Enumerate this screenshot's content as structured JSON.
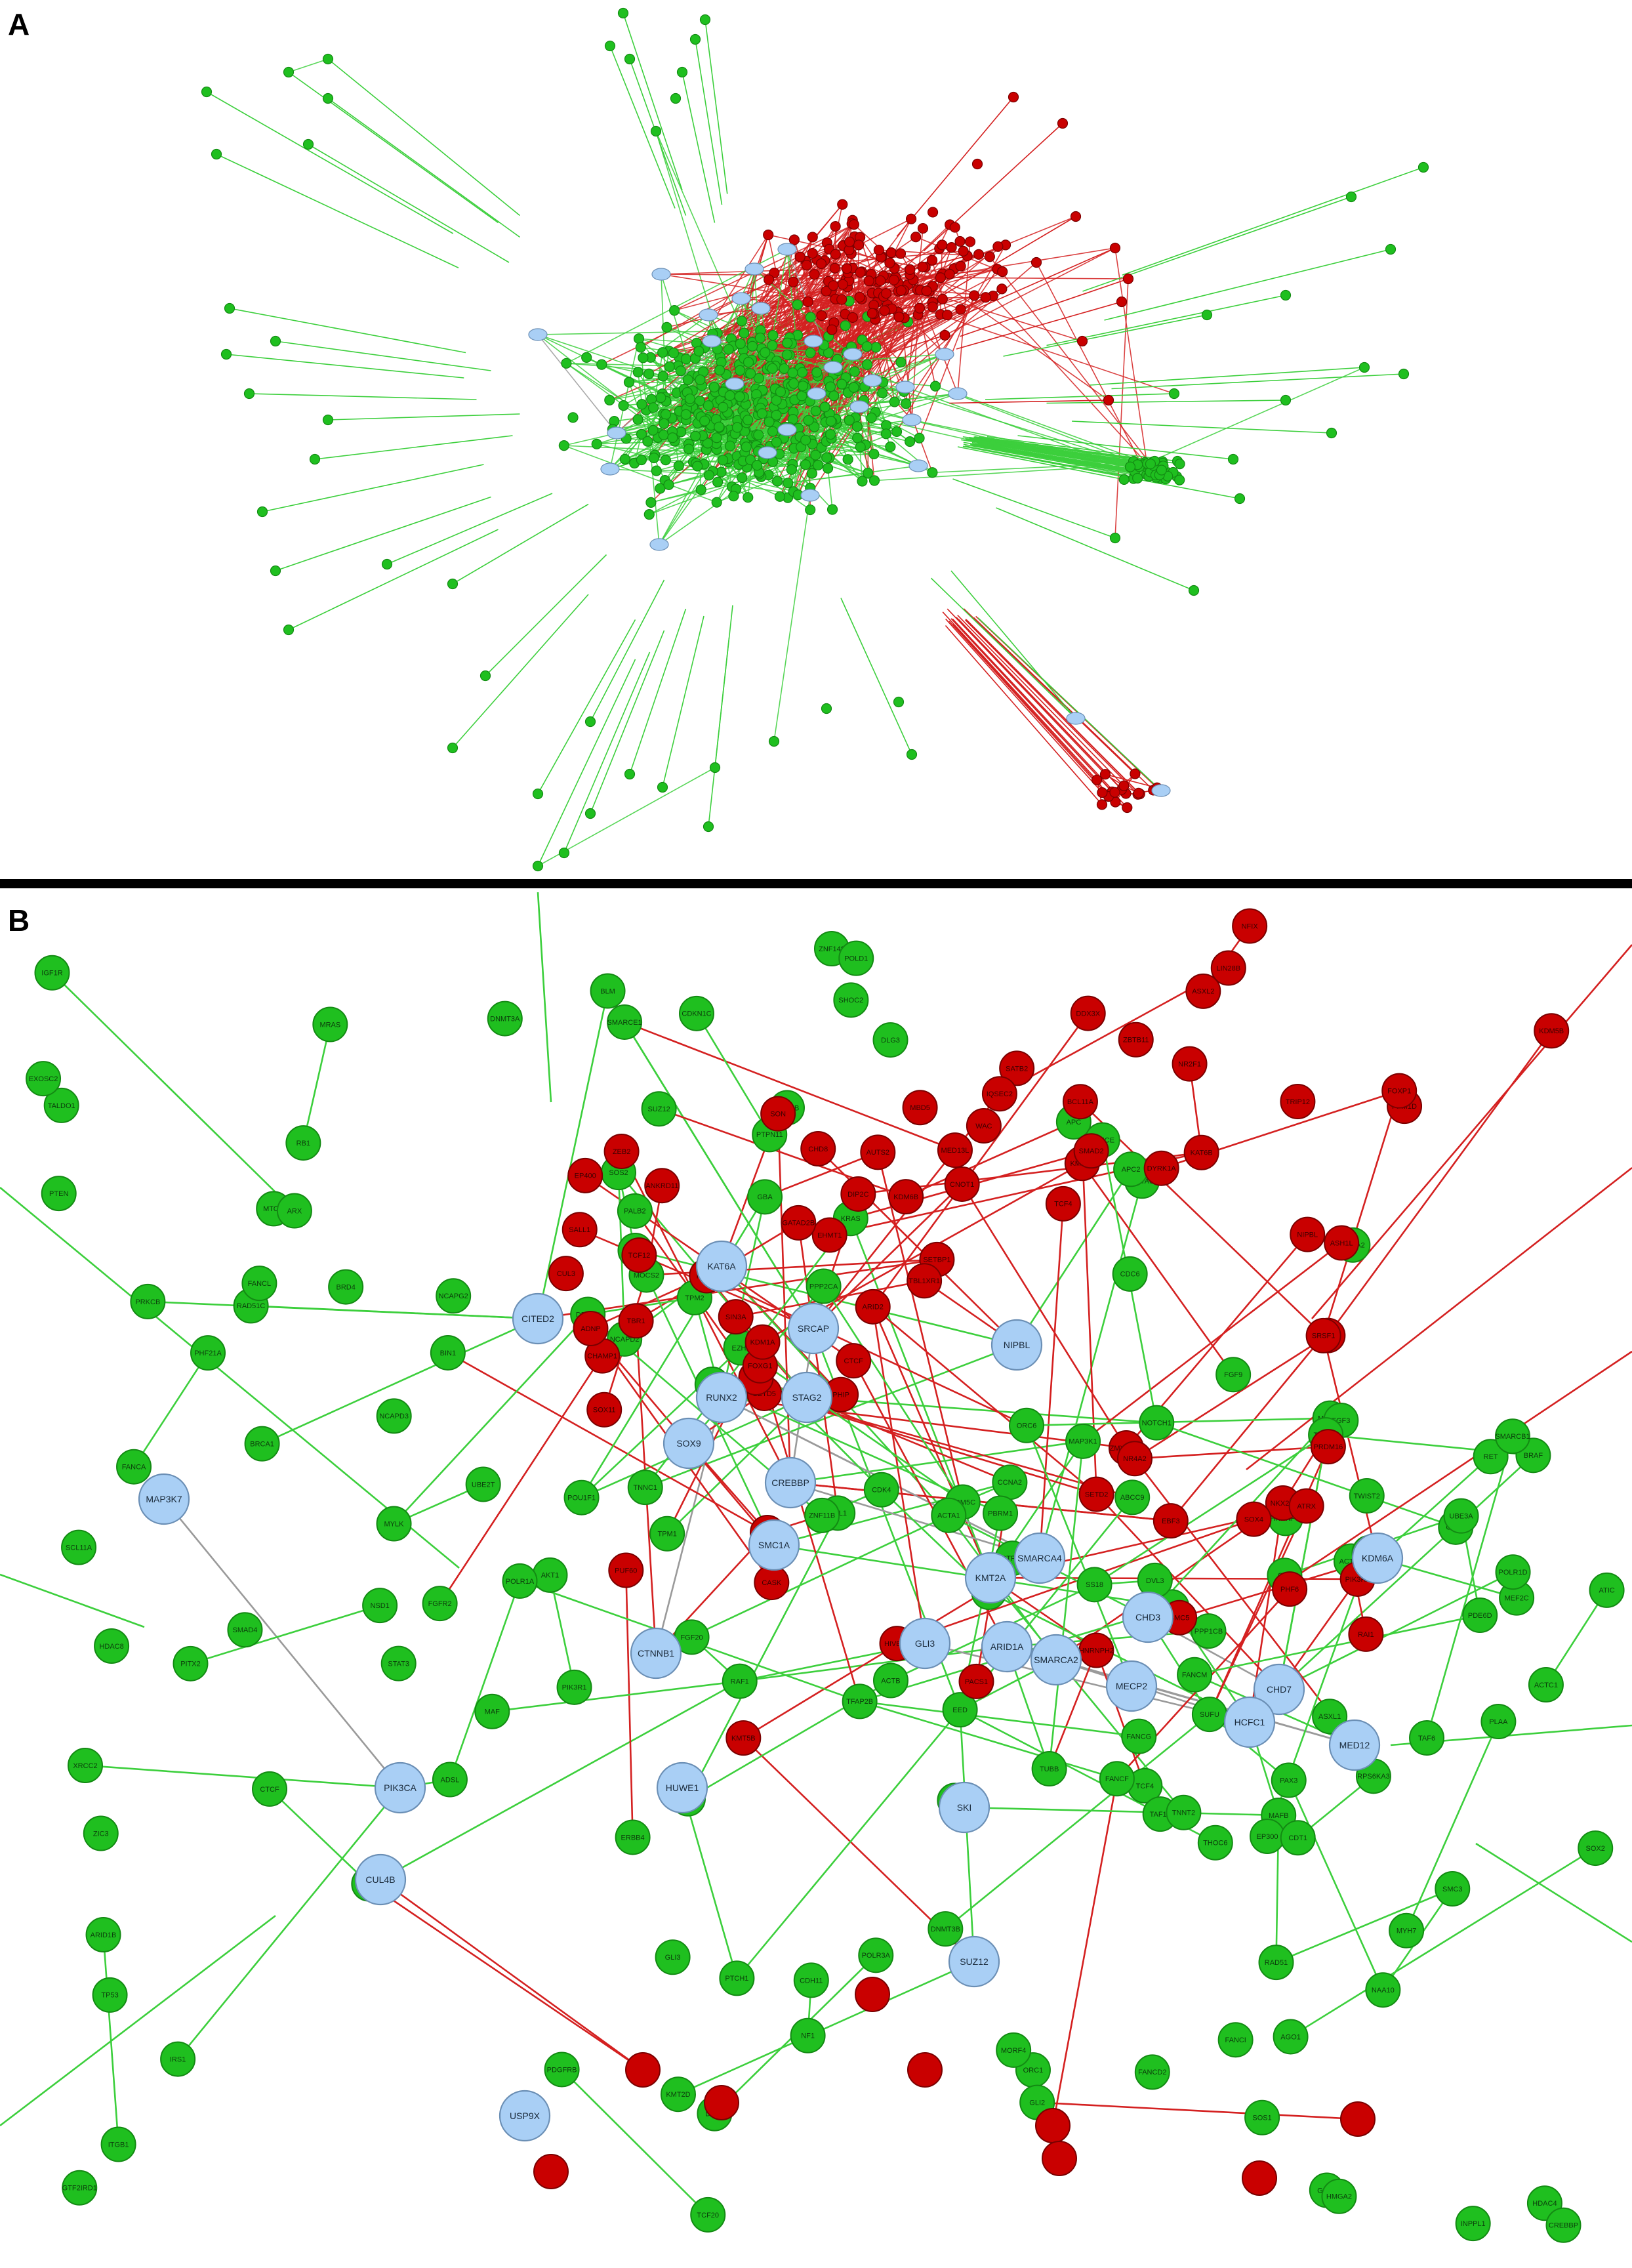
{
  "panels": {
    "a": {
      "letter": "A"
    },
    "b": {
      "letter": "B"
    }
  },
  "colors": {
    "green_node": "#1fbf1f",
    "green_stroke": "#138a13",
    "green_edge": "#3ccf3c",
    "red_node": "#c90000",
    "red_stroke": "#7a0000",
    "red_edge": "#d42020",
    "hub_node": "#a9cff5",
    "hub_stroke": "#6b8fb5",
    "hub_edge": "#9a9a9a",
    "divider": "#000000"
  },
  "panel_b_hub_labels": [
    "KAT6A",
    "CITED2",
    "SRCAP",
    "NIPBL",
    "RUNX2",
    "STAG2",
    "SOX9",
    "CREBBP",
    "MAP3K7",
    "SMC1A",
    "KMT2A",
    "SMARCA4",
    "KDM6A",
    "CHD3",
    "CTNNB1",
    "GLI3",
    "ARID1A",
    "SMARCA2",
    "MECP2",
    "CHD7",
    "HCFC1",
    "MED12",
    "PIK3CA",
    "HUWE1",
    "SKI",
    "CUL4B",
    "SUZ12",
    "USP9X"
  ],
  "panel_b_green_labels": [
    "KMT2D",
    "ACTG1",
    "MAFB",
    "TFAP2B",
    "TALDO1",
    "PLAA",
    "MEF2C",
    "BRPF1",
    "TUBB",
    "GBA",
    "ITGB1",
    "HDAC4",
    "TWIST2",
    "EXOSC2",
    "MAF",
    "POU1F1",
    "TCF4",
    "NAA10",
    "PDE6D",
    "RPS6KA3",
    "GATA6",
    "ABCC9",
    "MAP3K1",
    "THOC6",
    "CHD4",
    "ZNF148",
    "MEF2C",
    "NSD1",
    "EP300",
    "SOX2",
    "CDH11",
    "SUFU",
    "APC2",
    "NF1",
    "PRKCB",
    "DNMT3A",
    "KRAS",
    "PPP2CA",
    "MRAS",
    "ERBB4",
    "GATA4",
    "SHOC2",
    "STAT3",
    "RET",
    "FGF20",
    "SOS1",
    "RAF1",
    "BRAF",
    "IRS1",
    "AMER1",
    "SOS2",
    "PIK3R1",
    "PTPN11",
    "MTOR",
    "AKT1",
    "APC",
    "DVL3",
    "RB1",
    "TRAF7",
    "TCF20",
    "ZIC3",
    "PHF21A",
    "DDX3X",
    "KDM5C",
    "ASXL1",
    "SMC3",
    "BRD4",
    "FGFR2",
    "FGF3",
    "FGF9",
    "PTEN",
    "CDK4",
    "CBL",
    "PDGFRB",
    "IGF1R",
    "PAX3",
    "AGO1",
    "DLG3",
    "ATIC",
    "ADSL",
    "RAD51C",
    "ORC1",
    "ORC6",
    "GDF1",
    "MOCS2",
    "POLD1",
    "FANCA",
    "FANCB",
    "FANCC",
    "FANCD2",
    "FANCE",
    "FANCF",
    "FANCG",
    "FANCI",
    "FANCL",
    "FANCM",
    "PALB2",
    "BRCA1",
    "BRCA2",
    "BRIP1",
    "RAD51",
    "BLM",
    "XRCC2",
    "NCAPD2",
    "NCAPD3",
    "NCAPG2",
    "NOTCH1",
    "UBE3A",
    "UBE2T",
    "EED",
    "SUZ12",
    "EZH2",
    "HMGA2",
    "TAF1",
    "TAF6",
    "TAF13",
    "DNMT3B",
    "MORF4",
    "PPP1CB",
    "HDAC8",
    "GLI2",
    "GLI3",
    "TP53",
    "CREBBP",
    "CTCF",
    "HNRNPU",
    "SMAD4",
    "RBL1",
    "POLR1A",
    "POLR1B",
    "POLR1D",
    "GTF2IRD1",
    "GTF2B",
    "ACTA1",
    "ACTB",
    "ACTC1",
    "MYH7",
    "TNNT2",
    "TPM1",
    "TPM2",
    "TNNC1",
    "MYLK",
    "BIN1",
    "CCNA2",
    "CDKN1C",
    "PTCH1",
    "PITX2",
    "ARX",
    "CDC6",
    "CDT1",
    "INPPL1",
    "SMARCE1",
    "PBRM1",
    "ARID1B",
    "SMARCB1",
    "DPF2",
    "SS18",
    "SCL11A",
    "POLR3A",
    "TRIP13",
    "ZNF11B"
  ],
  "panel_b_red_labels": [
    "PPM1D",
    "LIN28B",
    "KDM5B",
    "TRIP12",
    "ZBTB11",
    "NFIX",
    "ASXL2",
    "NR2F1",
    "FOXP1",
    "SATB2",
    "DDX3X",
    "KAT6B",
    "SETBP1",
    "BCL11A",
    "ZEB2",
    "CHAMP1",
    "TBR1",
    "DYRK1A",
    "ARID2",
    "TCF12",
    "MBD5",
    "ANKRD11",
    "PACS1",
    "CTCF",
    "CNOT1",
    "AUTS2",
    "SETD2",
    "SETD5",
    "KMT2E",
    "ASH1L",
    "HNRNPH2",
    "CASK",
    "SON",
    "KMT5B",
    "PUF60",
    "EHMT1",
    "CHD8",
    "YY1",
    "SIN3A",
    "EBF3",
    "RAI1",
    "PHF6",
    "NONO",
    "MED13L",
    "TBL1XR1",
    "SMAD2",
    "ZMYND11",
    "PHIP",
    "POGZ",
    "CUL3",
    "WAC",
    "KDM6B",
    "NKX2-1",
    "SOX4",
    "SOX11",
    "HIVEP2",
    "ADNP",
    "ATRX",
    "PIK3R2",
    "NR4A2",
    "TCF4",
    "GATAD2B",
    "SALL1",
    "PRDM16",
    "SMC5",
    "DIP2C",
    "IQSEC2",
    "FOXG1",
    "TSHZ3",
    "EP400",
    "NIPBL",
    "SRSF1",
    "KDM1A"
  ]
}
